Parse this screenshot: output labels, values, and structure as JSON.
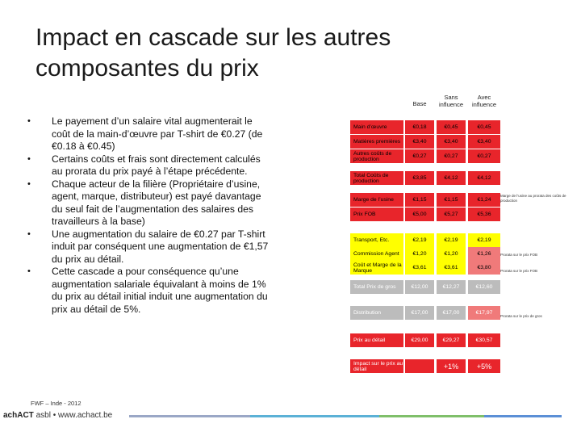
{
  "title_line1": "Impact en cascade sur les autres",
  "title_line2": "composantes du prix",
  "bullets": [
    "Le payement d’un salaire vital augmenterait le coût de la main-d’œuvre par T-shirt de €0.27 (de €0.18 à €0.45)",
    "Certains coûts et frais sont directement calculés au prorata du prix payé à l’étape précédente.",
    "Chaque acteur de la filière (Propriétaire d’usine, agent, marque, distributeur) est payé davantage du seul fait de l’augmentation des salaires des travailleurs à la base)",
    "Une augmentation du salaire de €0.27 par T-shirt induit par conséquent une augmentation de €1,57 du prix au détail.",
    "Cette cascade a pour conséquence qu’une augmentation salariale équivalant à moins de 1% du prix au détail initial induit une augmentation du prix au détail de 5%."
  ],
  "bullet_marker": "•",
  "footer_note": "FWF – Inde - 2012",
  "logo": {
    "brand": "achACT",
    "suffix": " asbl • www.achact.be"
  },
  "table": {
    "headers": {
      "base": "Base",
      "sans": "Sans influence",
      "avec": "Avec influence"
    },
    "rows": [
      {
        "label": "Main d’œuvre",
        "base": "€0,18",
        "sans": "€0,45",
        "avec": "€0,45"
      },
      {
        "label": "Matières premières",
        "base": "€3,40",
        "sans": "€3,40",
        "avec": "€3,40"
      },
      {
        "label": "Autres coûts de production",
        "base": "€0,27",
        "sans": "€0,27",
        "avec": "€0,27"
      },
      {
        "label": "Total Coûts de production",
        "base": "€3,85",
        "sans": "€4,12",
        "avec": "€4,12"
      },
      {
        "label": "Marge de l’usine",
        "base": "€1,15",
        "sans": "€1,15",
        "avec": "€1,24"
      },
      {
        "label": "Prix FOB",
        "base": "€5,00",
        "sans": "€5,27",
        "avec": "€5,36"
      },
      {
        "label": "Transport, Etc.",
        "base": "€2,19",
        "sans": "€2,19",
        "avec": "€2,19"
      },
      {
        "label": "Commission Agent",
        "base": "€1,20",
        "sans": "€1,20",
        "avec": "€1,26"
      },
      {
        "label": "Coût et Marge de la Marque",
        "base": "€3,61",
        "sans": "€3,61",
        "avec": "€3,80"
      },
      {
        "label": "Total Prix de gros",
        "base": "€12,00",
        "sans": "€12,27",
        "avec": "€12,60"
      },
      {
        "label": "Distribution",
        "base": "€17,00",
        "sans": "€17,00",
        "avec": "€17,97"
      },
      {
        "label": "Prix au détail",
        "base": "€29,00",
        "sans": "€29,27",
        "avec": "€30,57"
      },
      {
        "label": "Impact sur le prix au détail",
        "base": "",
        "sans": "+1%",
        "avec": "+5%"
      }
    ],
    "notes": {
      "usine": "Marge de l’usine au prorata des coûts de production",
      "agent": "Prorata sur le prix FOB",
      "marque": "Prorata sur le prix FOB",
      "distrib": "Prorata sur le prix de gros"
    }
  },
  "colors": {
    "red": "#e8252b",
    "light_red": "#f07a7a",
    "yellow": "#ffff00",
    "grey": "#bcbcbc"
  }
}
